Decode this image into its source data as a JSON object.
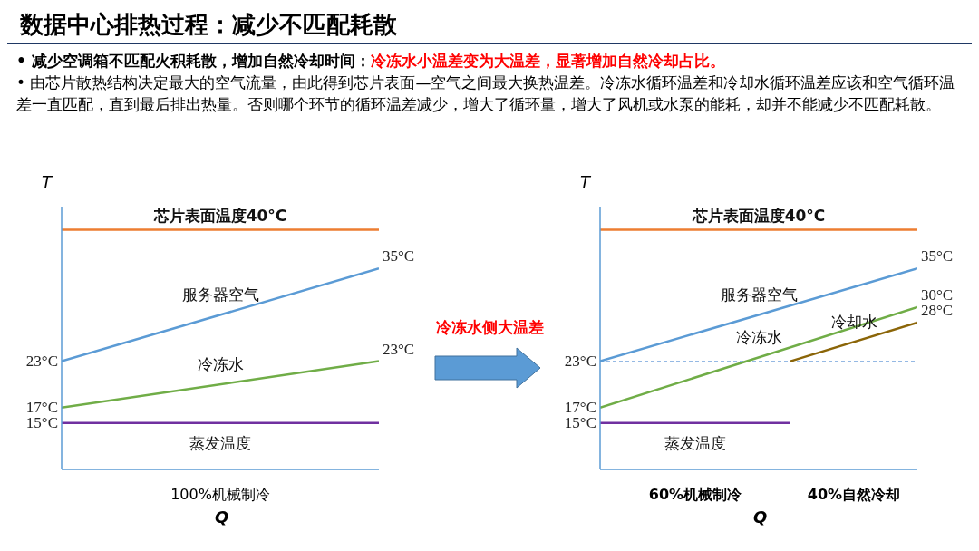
{
  "chart_data": [
    {
      "type": "line",
      "title": "数据中心排热过程：减少不匹配耗散",
      "xlabel": "Q",
      "ylabel": "T",
      "categories": [
        null,
        null
      ],
      "legend": false,
      "marker": "none",
      "annotations": [
        "• 减少空调箱不匹配火积耗散，增加自然冷却时间：",
        "冷冻水小温差变为大温差，显著增加自然冷却占比。",
        "• 由芯片散热结构决定最大的空气流量，由此得到芯片表面—空气之间最大换热温差。冷冻水循环温差和冷却水循环温差应该和空气循环温差一直匹配，直到最后排出热量。否则哪个环节的循环温差减少，增大了循环量，增大了风机或水泵的能耗，却并不能减少不匹配耗散。",
        "冷冻水侧大温差",
        "100%机械制冷"
      ],
      "series": [
        {
          "name": "芯片表面温度40°C",
          "color": "#ed7d31",
          "values": [
            40,
            40
          ],
          "value_labels": [
            null,
            null
          ]
        },
        {
          "name": "服务器空气",
          "color": "#5b9bd5",
          "values": [
            23,
            35
          ],
          "value_labels": [
            "23°C",
            "35°C"
          ]
        },
        {
          "name": "冷冻水",
          "color": "#70ad47",
          "values": [
            17,
            23
          ],
          "value_labels": [
            "17°C",
            "23°C"
          ]
        },
        {
          "name": "蒸发温度",
          "color": "#7030a0",
          "values": [
            15,
            15
          ],
          "value_labels": [
            "15°C",
            null
          ]
        }
      ]
    },
    {
      "type": "line",
      "xlabel": "Q",
      "ylabel": "T",
      "categories": [
        null,
        null,
        null,
        null,
        null,
        null
      ],
      "legend": false,
      "marker": "none",
      "annotations": [
        "60%机械制冷",
        "40%自然冷却"
      ],
      "ref_lines": [
        {
          "axis": "y",
          "value": 23,
          "line_style": "dashed"
        }
      ],
      "series": [
        {
          "name": "芯片表面温度40°C",
          "color": "#ed7d31",
          "values": [
            40,
            null,
            null,
            null,
            null,
            40
          ],
          "value_labels": [
            null,
            null,
            null,
            null,
            null,
            null
          ]
        },
        {
          "name": "服务器空气",
          "color": "#5b9bd5",
          "values": [
            23,
            null,
            null,
            null,
            null,
            35
          ],
          "value_labels": [
            "23°C",
            null,
            null,
            null,
            null,
            "35°C"
          ]
        },
        {
          "name": "冷冻水",
          "color": "#70ad47",
          "values": [
            17,
            null,
            null,
            null,
            null,
            30
          ],
          "value_labels": [
            "17°C",
            null,
            null,
            null,
            null,
            "30°C"
          ]
        },
        {
          "name": "冷却水",
          "color": "#8b6508",
          "values": [
            null,
            null,
            null,
            23,
            null,
            28
          ],
          "value_labels": [
            null,
            null,
            null,
            null,
            null,
            "28°C"
          ]
        },
        {
          "name": "蒸发温度",
          "color": "#7030a0",
          "values": [
            15,
            null,
            null,
            15,
            null,
            null
          ],
          "value_labels": [
            "15°C",
            null,
            null,
            null,
            null,
            null
          ]
        }
      ]
    }
  ]
}
